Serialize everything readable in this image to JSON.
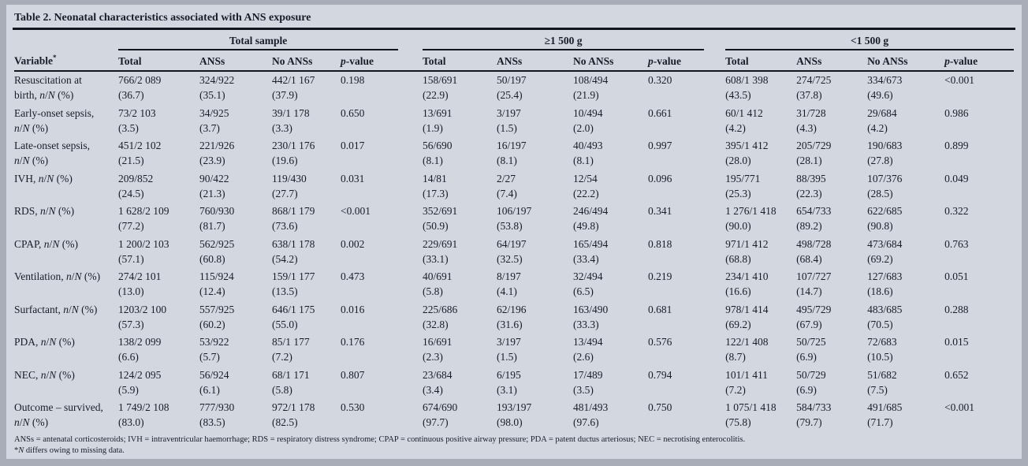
{
  "title": "Table 2. Neonatal characteristics associated with ANS exposure",
  "groups": [
    "Total sample",
    "≥1 500 g",
    "<1 500 g"
  ],
  "variable_header": "Variable*",
  "col_headers": [
    "Total",
    "ANSs",
    "No ANSs",
    "p-value"
  ],
  "rows": [
    {
      "label": [
        "Resuscitation at",
        "birth, n/N (%)"
      ],
      "cells": [
        [
          "766/2 089",
          "(36.7)"
        ],
        [
          "324/922",
          "(35.1)"
        ],
        [
          "442/1 167",
          "(37.9)"
        ],
        [
          "0.198",
          ""
        ],
        [
          "158/691",
          "(22.9)"
        ],
        [
          "50/197",
          "(25.4)"
        ],
        [
          "108/494",
          "(21.9)"
        ],
        [
          "0.320",
          ""
        ],
        [
          "608/1 398",
          "(43.5)"
        ],
        [
          "274/725",
          "(37.8)"
        ],
        [
          "334/673",
          "(49.6)"
        ],
        [
          "<0.001",
          ""
        ]
      ]
    },
    {
      "label": [
        "Early-onset sepsis,",
        "n/N (%)"
      ],
      "cells": [
        [
          "73/2 103",
          "(3.5)"
        ],
        [
          "34/925",
          "(3.7)"
        ],
        [
          "39/1 178",
          "(3.3)"
        ],
        [
          "0.650",
          ""
        ],
        [
          "13/691",
          "(1.9)"
        ],
        [
          "3/197",
          "(1.5)"
        ],
        [
          "10/494",
          "(2.0)"
        ],
        [
          "0.661",
          ""
        ],
        [
          "60/1 412",
          "(4.2)"
        ],
        [
          "31/728",
          "(4.3)"
        ],
        [
          "29/684",
          "(4.2)"
        ],
        [
          "0.986",
          ""
        ]
      ]
    },
    {
      "label": [
        "Late-onset sepsis,",
        "n/N (%)"
      ],
      "cells": [
        [
          "451/2 102",
          "(21.5)"
        ],
        [
          "221/926",
          "(23.9)"
        ],
        [
          "230/1 176",
          "(19.6)"
        ],
        [
          "0.017",
          ""
        ],
        [
          "56/690",
          "(8.1)"
        ],
        [
          "16/197",
          "(8.1)"
        ],
        [
          "40/493",
          "(8.1)"
        ],
        [
          "0.997",
          ""
        ],
        [
          "395/1 412",
          "(28.0)"
        ],
        [
          "205/729",
          "(28.1)"
        ],
        [
          "190/683",
          "(27.8)"
        ],
        [
          "0.899",
          ""
        ]
      ]
    },
    {
      "label": [
        "IVH, n/N (%)",
        ""
      ],
      "cells": [
        [
          "209/852",
          "(24.5)"
        ],
        [
          "90/422",
          "(21.3)"
        ],
        [
          "119/430",
          "(27.7)"
        ],
        [
          "0.031",
          ""
        ],
        [
          "14/81",
          "(17.3)"
        ],
        [
          "2/27",
          "(7.4)"
        ],
        [
          "12/54",
          "(22.2)"
        ],
        [
          "0.096",
          ""
        ],
        [
          "195/771",
          "(25.3)"
        ],
        [
          "88/395",
          "(22.3)"
        ],
        [
          "107/376",
          "(28.5)"
        ],
        [
          "0.049",
          ""
        ]
      ]
    },
    {
      "label": [
        "RDS, n/N (%)",
        ""
      ],
      "cells": [
        [
          "1 628/2 109",
          "(77.2)"
        ],
        [
          "760/930",
          "(81.7)"
        ],
        [
          "868/1 179",
          "(73.6)"
        ],
        [
          "<0.001",
          ""
        ],
        [
          "352/691",
          "(50.9)"
        ],
        [
          "106/197",
          "(53.8)"
        ],
        [
          "246/494",
          "(49.8)"
        ],
        [
          "0.341",
          ""
        ],
        [
          "1 276/1 418",
          "(90.0)"
        ],
        [
          "654/733",
          "(89.2)"
        ],
        [
          "622/685",
          "(90.8)"
        ],
        [
          "0.322",
          ""
        ]
      ]
    },
    {
      "label": [
        "CPAP, n/N (%)",
        ""
      ],
      "cells": [
        [
          "1 200/2 103",
          "(57.1)"
        ],
        [
          "562/925",
          "(60.8)"
        ],
        [
          "638/1 178",
          "(54.2)"
        ],
        [
          "0.002",
          ""
        ],
        [
          "229/691",
          "(33.1)"
        ],
        [
          "64/197",
          "(32.5)"
        ],
        [
          "165/494",
          "(33.4)"
        ],
        [
          "0.818",
          ""
        ],
        [
          "971/1 412",
          "(68.8)"
        ],
        [
          "498/728",
          "(68.4)"
        ],
        [
          "473/684",
          "(69.2)"
        ],
        [
          "0.763",
          ""
        ]
      ]
    },
    {
      "label": [
        "Ventilation, n/N (%)",
        ""
      ],
      "cells": [
        [
          "274/2 101",
          "(13.0)"
        ],
        [
          "115/924",
          "(12.4)"
        ],
        [
          "159/1 177",
          "(13.5)"
        ],
        [
          "0.473",
          ""
        ],
        [
          "40/691",
          "(5.8)"
        ],
        [
          "8/197",
          "(4.1)"
        ],
        [
          "32/494",
          "(6.5)"
        ],
        [
          "0.219",
          ""
        ],
        [
          "234/1 410",
          "(16.6)"
        ],
        [
          "107/727",
          "(14.7)"
        ],
        [
          "127/683",
          "(18.6)"
        ],
        [
          "0.051",
          ""
        ]
      ]
    },
    {
      "label": [
        "Surfactant, n/N (%)",
        ""
      ],
      "cells": [
        [
          "1203/2 100",
          "(57.3)"
        ],
        [
          "557/925",
          "(60.2)"
        ],
        [
          "646/1 175",
          "(55.0)"
        ],
        [
          "0.016",
          ""
        ],
        [
          "225/686",
          "(32.8)"
        ],
        [
          "62/196",
          "(31.6)"
        ],
        [
          "163/490",
          "(33.3)"
        ],
        [
          "0.681",
          ""
        ],
        [
          "978/1 414",
          "(69.2)"
        ],
        [
          "495/729",
          "(67.9)"
        ],
        [
          "483/685",
          "(70.5)"
        ],
        [
          "0.288",
          ""
        ]
      ]
    },
    {
      "label": [
        "PDA, n/N (%)",
        ""
      ],
      "cells": [
        [
          "138/2 099",
          "(6.6)"
        ],
        [
          "53/922",
          "(5.7)"
        ],
        [
          "85/1 177",
          "(7.2)"
        ],
        [
          "0.176",
          ""
        ],
        [
          "16/691",
          "(2.3)"
        ],
        [
          "3/197",
          "(1.5)"
        ],
        [
          "13/494",
          "(2.6)"
        ],
        [
          "0.576",
          ""
        ],
        [
          "122/1 408",
          "(8.7)"
        ],
        [
          "50/725",
          "(6.9)"
        ],
        [
          "72/683",
          "(10.5)"
        ],
        [
          "0.015",
          ""
        ]
      ]
    },
    {
      "label": [
        "NEC, n/N (%)",
        ""
      ],
      "cells": [
        [
          "124/2 095",
          "(5.9)"
        ],
        [
          "56/924",
          "(6.1)"
        ],
        [
          "68/1 171",
          "(5.8)"
        ],
        [
          "0.807",
          ""
        ],
        [
          "23/684",
          "(3.4)"
        ],
        [
          "6/195",
          "(3.1)"
        ],
        [
          "17/489",
          "(3.5)"
        ],
        [
          "0.794",
          ""
        ],
        [
          "101/1 411",
          "(7.2)"
        ],
        [
          "50/729",
          "(6.9)"
        ],
        [
          "51/682",
          "(7.5)"
        ],
        [
          "0.652",
          ""
        ]
      ]
    },
    {
      "label": [
        "Outcome – survived,",
        "n/N (%)"
      ],
      "cells": [
        [
          "1 749/2 108",
          "(83.0)"
        ],
        [
          "777/930",
          "(83.5)"
        ],
        [
          "972/1 178",
          "(82.5)"
        ],
        [
          "0.530",
          ""
        ],
        [
          "674/690",
          "(97.7)"
        ],
        [
          "193/197",
          "(98.0)"
        ],
        [
          "481/493",
          "(97.6)"
        ],
        [
          "0.750",
          ""
        ],
        [
          "1 075/1 418",
          "(75.8)"
        ],
        [
          "584/733",
          "(79.7)"
        ],
        [
          "491/685",
          "(71.7)"
        ],
        [
          "<0.001",
          ""
        ]
      ]
    }
  ],
  "footnotes": [
    "ANSs = antenatal corticosteroids; IVH = intraventricular haemorrhage; RDS = respiratory distress syndrome; CPAP = continuous positive airway pressure; PDA = patent ductus arteriosus; NEC = necrotising enterocolitis.",
    "*N differs owing to missing data."
  ],
  "colors": {
    "page_frame": "#a8adb7",
    "table_background": "#d3d7df",
    "text": "#191d2b",
    "rule": "#14161f"
  }
}
